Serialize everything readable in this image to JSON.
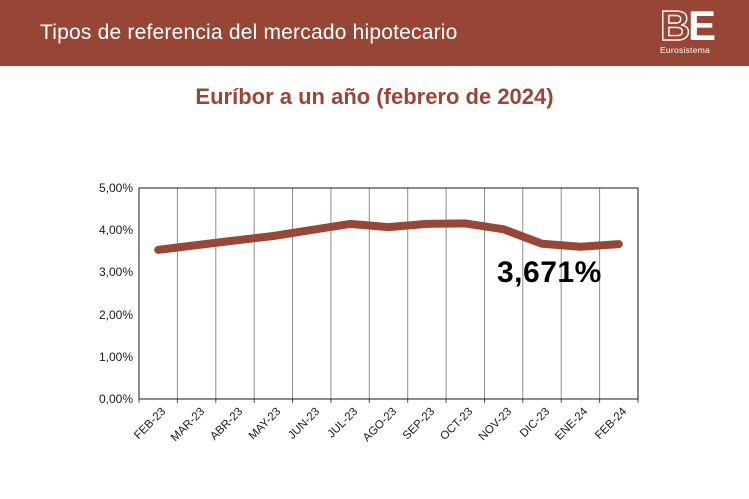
{
  "header": {
    "title": "Tipos de referencia del mercado hipotecario",
    "logo": {
      "letter_b": "B",
      "letter_e": "E",
      "subtitle": "Eurosistema"
    }
  },
  "colors": {
    "header_bg": "#974636",
    "header_text": "#ffffff",
    "chart_title_text": "#9a4636",
    "line": "#9a4636",
    "grid": "#8c8c8c",
    "plot_border": "#1a1a1a",
    "value_label": "#000000"
  },
  "chart_data": {
    "type": "line",
    "title": "Euríbor a un año (febrero de 2024)",
    "categories": [
      "FEB-23",
      "MAR-23",
      "ABR-23",
      "MAY-23",
      "JUN-23",
      "JUL-23",
      "AGO-23",
      "SEP-23",
      "OCT-23",
      "NOV-23",
      "DIC-23",
      "ENE-24",
      "FEB-24"
    ],
    "values": [
      3.534,
      3.647,
      3.757,
      3.862,
      4.007,
      4.149,
      4.073,
      4.149,
      4.16,
      4.022,
      3.679,
      3.609,
      3.671
    ],
    "ylim": [
      0,
      5
    ],
    "ytick_labels_top_down": [
      "5,00%",
      "4,00%",
      "3,00%",
      "2,00%",
      "1,00%",
      "0,00%"
    ],
    "xlabel": "",
    "ylabel": "",
    "grid": "vertical-only",
    "legend": "none",
    "last_value_label": "3,671%",
    "line_color": "#9a4636",
    "grid_color": "#8c8c8c"
  }
}
